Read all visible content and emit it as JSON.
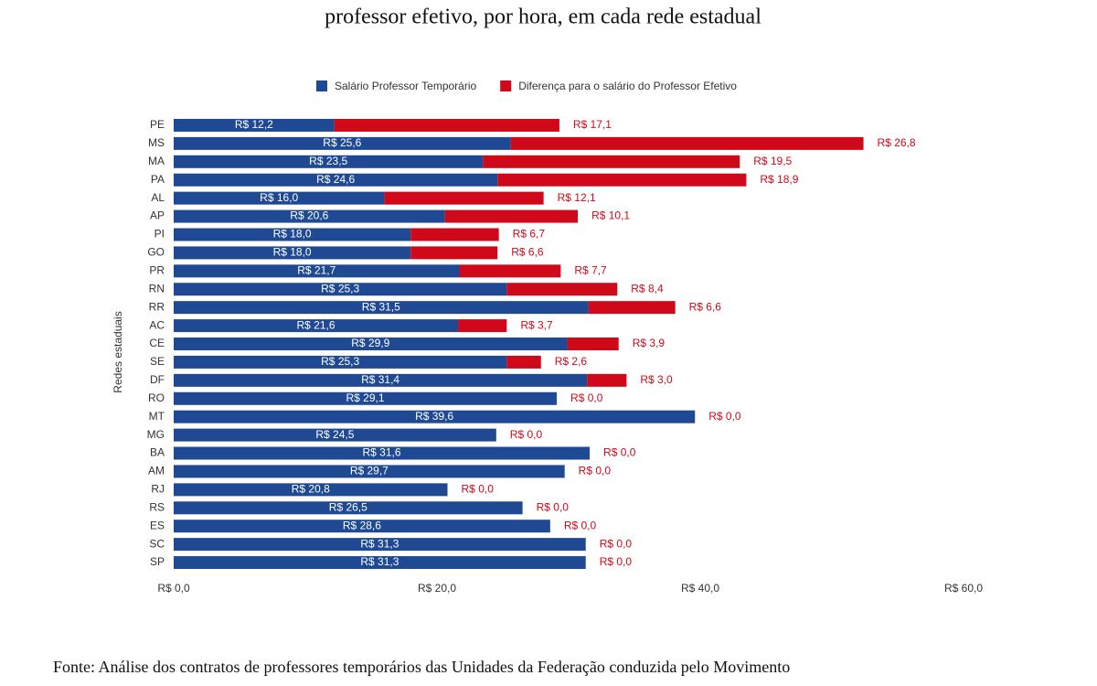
{
  "chart_data": {
    "type": "bar",
    "orientation": "horizontal",
    "stacked": true,
    "title": "professor efetivo, por hora, em cada rede estadual",
    "y_label": "Redes estaduais",
    "source": "Fonte: Análise dos contratos de professores temporários das Unidades da Federação conduzida pelo Movimento",
    "categories": [
      "PE",
      "MS",
      "MA",
      "PA",
      "AL",
      "AP",
      "PI",
      "GO",
      "PR",
      "RN",
      "RR",
      "AC",
      "CE",
      "SE",
      "DF",
      "RO",
      "MT",
      "MG",
      "BA",
      "AM",
      "RJ",
      "RS",
      "ES",
      "SC",
      "SP"
    ],
    "series": [
      {
        "name": "Salário Professor Temporário",
        "color": "#1f4a93",
        "values": [
          12.2,
          25.6,
          23.5,
          24.6,
          16.0,
          20.6,
          18.0,
          18.0,
          21.7,
          25.3,
          31.5,
          21.6,
          29.9,
          25.3,
          31.4,
          29.1,
          39.6,
          24.5,
          31.6,
          29.7,
          20.8,
          26.5,
          28.6,
          31.3,
          31.3
        ],
        "value_labels": [
          "R$ 12,2",
          "R$ 25,6",
          "R$ 23,5",
          "R$ 24,6",
          "R$ 16,0",
          "R$ 20,6",
          "R$ 18,0",
          "R$ 18,0",
          "R$ 21,7",
          "R$ 25,3",
          "R$ 31,5",
          "R$ 21,6",
          "R$ 29,9",
          "R$ 25,3",
          "R$ 31,4",
          "R$ 29,1",
          "R$ 39,6",
          "R$ 24,5",
          "R$ 31,6",
          "R$ 29,7",
          "R$ 20,8",
          "R$ 26,5",
          "R$ 28,6",
          "R$ 31,3",
          "R$ 31,3"
        ]
      },
      {
        "name": "Diferença para o salário do Professor Efetivo",
        "color": "#d0091a",
        "values": [
          17.1,
          26.8,
          19.5,
          18.9,
          12.1,
          10.1,
          6.7,
          6.6,
          7.7,
          8.4,
          6.6,
          3.7,
          3.9,
          2.6,
          3.0,
          0,
          0,
          0,
          0,
          0,
          0,
          0,
          0,
          0,
          0
        ],
        "value_labels": [
          "R$ 17,1",
          "R$ 26,8",
          "R$ 19,5",
          "R$ 18,9",
          "R$ 12,1",
          "R$ 10,1",
          "R$ 6,7",
          "R$ 6,6",
          "R$ 7,7",
          "R$ 8,4",
          "R$ 6,6",
          "R$ 3,7",
          "R$ 3,9",
          "R$ 2,6",
          "R$ 3,0",
          "R$ 0,0",
          "R$ 0,0",
          "R$ 0,0",
          "R$ 0,0",
          "R$ 0,0",
          "R$ 0,0",
          "R$ 0,0",
          "R$ 0,0",
          "R$ 0,0",
          "R$ 0,0"
        ]
      }
    ],
    "xlim": [
      0,
      60
    ],
    "xticks": [
      {
        "value": 0,
        "label": "R$ 0,0"
      },
      {
        "value": 20,
        "label": "R$ 20,0"
      },
      {
        "value": 40,
        "label": "R$ 40,0"
      },
      {
        "value": 60,
        "label": "R$ 60,0"
      }
    ],
    "legend": "top"
  }
}
